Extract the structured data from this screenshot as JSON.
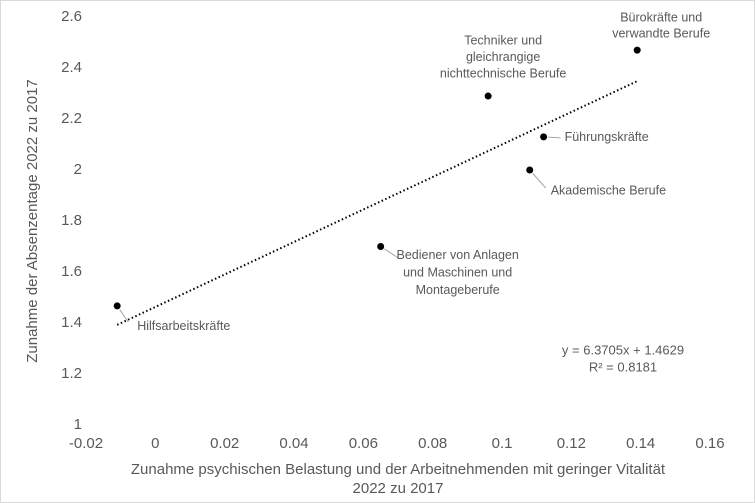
{
  "chart_data": {
    "type": "scatter",
    "xlabel": [
      "Zunahme psychischen Belastung und der Arbeitnehmenden mit geringer Vitalität",
      "2022 zu 2017"
    ],
    "ylabel": "Zunahme der Absenzentage 2022 zu 2017",
    "x": [
      -0.011,
      0.065,
      0.096,
      0.112,
      0.108,
      0.139
    ],
    "values": [
      1.467,
      1.7,
      2.29,
      2.13,
      2.0,
      2.47
    ],
    "point_labels": [
      [
        "Hilfsarbeitskräfte"
      ],
      [
        "Bediener von Anlagen",
        "und Maschinen und",
        "Montageberufe"
      ],
      [
        "Techniker und",
        "gleichrangige",
        "nichttechnische Berufe"
      ],
      [
        "Führungskräfte"
      ],
      [
        "Akademische Berufe"
      ],
      [
        "Bürokräfte und",
        "verwandte Berufe"
      ]
    ],
    "color": "#000000",
    "xlim": [
      -0.02,
      0.16
    ],
    "xticks": [
      -0.02,
      0,
      0.02,
      0.04,
      0.06,
      0.08,
      0.1,
      0.12,
      0.14,
      0.16
    ],
    "ylim": [
      1,
      2.6
    ],
    "yticks": [
      1,
      1.2,
      1.4,
      1.6,
      1.8,
      2,
      2.2,
      2.4,
      2.6
    ],
    "grid": false,
    "trendline": {
      "slope": 6.3705,
      "intercept": 1.4629,
      "label": [
        "y = 6.3705x + 1.4629",
        "R² = 0.8181"
      ]
    }
  }
}
